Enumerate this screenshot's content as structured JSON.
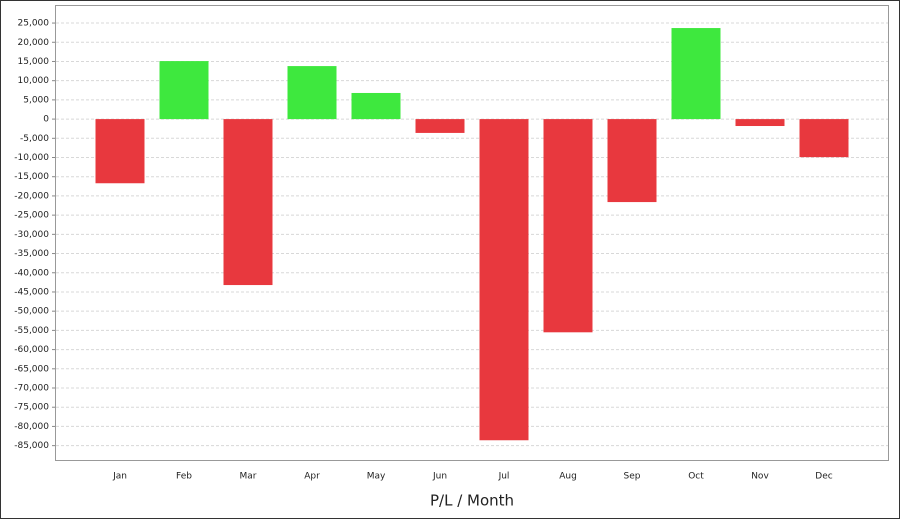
{
  "chart_data": {
    "type": "bar",
    "x_label": "P/L / Month",
    "categories": [
      "Jan",
      "Feb",
      "Mar",
      "Apr",
      "May",
      "Jun",
      "Jul",
      "Aug",
      "Sep",
      "Oct",
      "Nov",
      "Dec"
    ],
    "values": [
      -16700,
      15100,
      -43200,
      13800,
      6800,
      -3600,
      -83600,
      -55500,
      -21600,
      23700,
      -1800,
      -9900
    ],
    "colors": [
      "#e8383e",
      "#3ee83e",
      "#e8383e",
      "#3ee83e",
      "#3ee83e",
      "#e8383e",
      "#e8383e",
      "#e8383e",
      "#e8383e",
      "#3ee83e",
      "#e8383e",
      "#e8383e"
    ],
    "ylim": [
      -89000,
      29700
    ],
    "yticks": [
      {
        "value": 25000,
        "label": "25,000"
      },
      {
        "value": 20000,
        "label": "20,000"
      },
      {
        "value": 15000,
        "label": "15,000"
      },
      {
        "value": 10000,
        "label": "10,000"
      },
      {
        "value": 5000,
        "label": "5,000"
      },
      0,
      {
        "value": -5000,
        "label": "-5,000"
      },
      {
        "value": -10000,
        "label": "-10,000"
      },
      {
        "value": -15000,
        "label": "-15,000"
      },
      {
        "value": -20000,
        "label": "-20,000"
      },
      {
        "value": -25000,
        "label": "-25,000"
      },
      {
        "value": -30000,
        "label": "-30,000"
      },
      {
        "value": -35000,
        "label": "-35,000"
      },
      {
        "value": -40000,
        "label": "-40,000"
      },
      {
        "value": -45000,
        "label": "-45,000"
      },
      {
        "value": -50000,
        "label": "-50,000"
      },
      {
        "value": -55000,
        "label": "-55,000"
      },
      {
        "value": -60000,
        "label": "-60,000"
      },
      {
        "value": -65000,
        "label": "-65,000"
      },
      {
        "value": -70000,
        "label": "-70,000"
      },
      {
        "value": -75000,
        "label": "-75,000"
      },
      {
        "value": -80000,
        "label": "-80,000"
      },
      {
        "value": -85000,
        "label": "-85,000"
      }
    ],
    "grid": true
  }
}
